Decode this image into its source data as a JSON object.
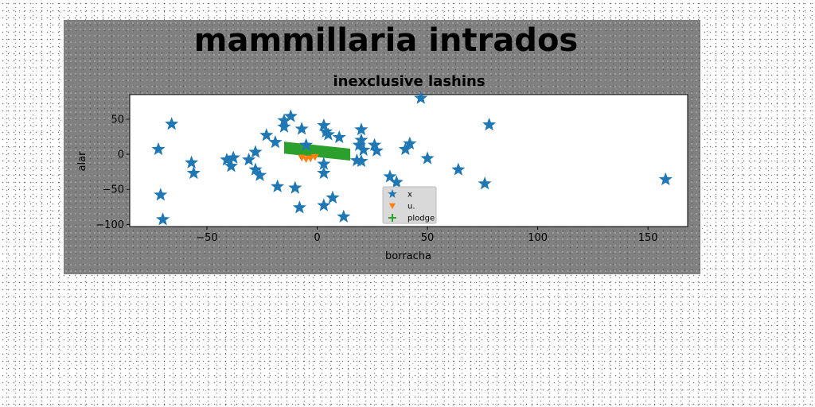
{
  "chart_data": {
    "type": "scatter",
    "suptitle": "mammillaria intrados",
    "title": "inexclusive lashins",
    "xlabel": "borracha",
    "ylabel": "alar",
    "xlim": [
      -85,
      168
    ],
    "ylim": [
      -103,
      85
    ],
    "xticks": [
      -50,
      0,
      50,
      100,
      150
    ],
    "yticks": [
      -100,
      -50,
      0,
      50
    ],
    "grid": false,
    "legend_position": "lower center",
    "series": [
      {
        "name": "x",
        "marker": "star",
        "color": "#1f77b4",
        "points": [
          [
            -72,
            7
          ],
          [
            -66,
            43
          ],
          [
            -71,
            -58
          ],
          [
            -70,
            -93
          ],
          [
            -57,
            -12
          ],
          [
            -56,
            -27
          ],
          [
            -41,
            -8
          ],
          [
            -39,
            -17
          ],
          [
            -38,
            -5
          ],
          [
            -31,
            -8
          ],
          [
            -28,
            3
          ],
          [
            -28,
            -22
          ],
          [
            -26,
            -30
          ],
          [
            -23,
            27
          ],
          [
            -19,
            17
          ],
          [
            -18,
            -46
          ],
          [
            -15,
            39
          ],
          [
            -15,
            48
          ],
          [
            -12,
            54
          ],
          [
            -10,
            -48
          ],
          [
            -8,
            -76
          ],
          [
            -7,
            36
          ],
          [
            -5,
            13
          ],
          [
            3,
            41
          ],
          [
            4,
            32
          ],
          [
            5,
            28
          ],
          [
            10,
            24
          ],
          [
            3,
            -14
          ],
          [
            3,
            -27
          ],
          [
            3,
            -73
          ],
          [
            7,
            -62
          ],
          [
            12,
            -89
          ],
          [
            18,
            -9
          ],
          [
            19,
            13
          ],
          [
            20,
            20
          ],
          [
            20,
            35
          ],
          [
            20,
            -10
          ],
          [
            21,
            6
          ],
          [
            26,
            13
          ],
          [
            27,
            5
          ],
          [
            33,
            -32
          ],
          [
            36,
            -40
          ],
          [
            40,
            7
          ],
          [
            42,
            15
          ],
          [
            47,
            80
          ],
          [
            50,
            -6
          ],
          [
            64,
            -22
          ],
          [
            76,
            -42
          ],
          [
            78,
            42
          ],
          [
            158,
            -36
          ]
        ]
      },
      {
        "name": "u.",
        "marker": "triangle-down",
        "color": "#ff7f0e",
        "points": [
          [
            -7,
            -5
          ],
          [
            -5,
            -7
          ],
          [
            -3,
            -6
          ],
          [
            -1,
            -4
          ]
        ]
      },
      {
        "name": "plodge",
        "marker": "plus",
        "color": "#2ca02c",
        "points": []
      }
    ],
    "shapes": [
      {
        "label": "",
        "kind": "polygon",
        "color": "#2ca02c",
        "points": [
          [
            -15,
            18
          ],
          [
            15,
            8
          ],
          [
            15,
            -9
          ],
          [
            -15,
            1
          ]
        ]
      }
    ]
  }
}
